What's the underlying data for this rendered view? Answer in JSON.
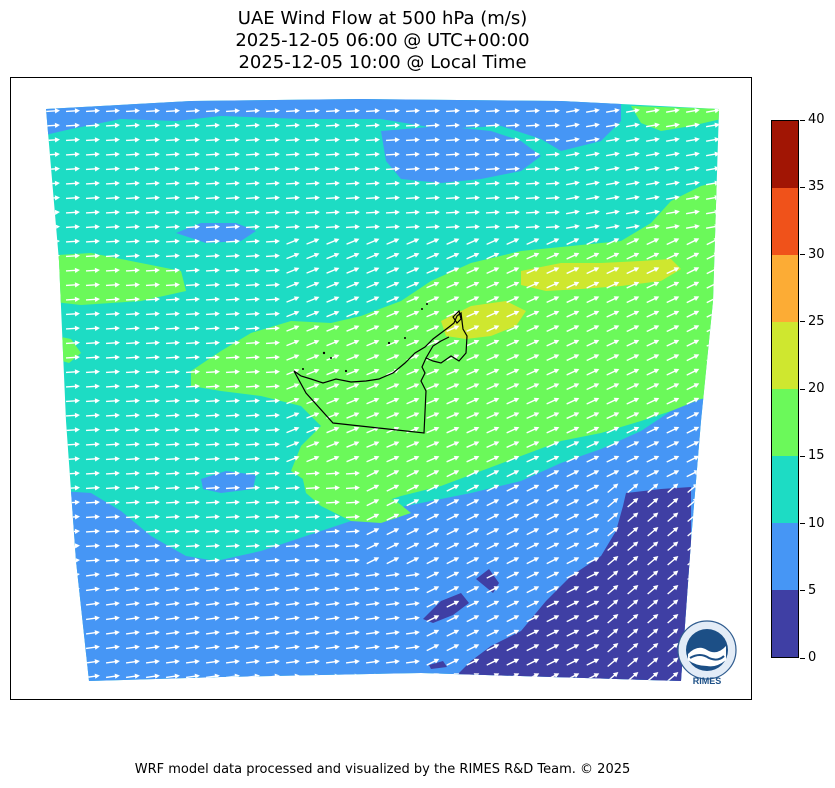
{
  "title": {
    "line1": "UAE Wind Flow at 500 hPa (m/s)",
    "line2": "2025-12-05 06:00 @ UTC+00:00",
    "line3": "2025-12-05 10:00 @ Local Time"
  },
  "colorbar": {
    "levels": [
      0,
      5,
      10,
      15,
      20,
      25,
      30,
      35,
      40
    ],
    "colors": [
      "#3f3fa4",
      "#4696f5",
      "#1ddcc4",
      "#6bf95a",
      "#cfe72f",
      "#fcac35",
      "#f0521a",
      "#a11504"
    ],
    "labels": [
      "0",
      "5",
      "10",
      "15",
      "20",
      "25",
      "30",
      "35",
      "40"
    ]
  },
  "map": {
    "wind_direction": "west-southwest to east-northeast",
    "arrow_color": "#ffffff",
    "outline_color": "#000000"
  },
  "logo": {
    "text": "RIMES",
    "ring_text": "Regional Integrated Multi-Hazard Early Warning System"
  },
  "footer": "WRF model data processed and visualized by the RIMES R&D Team. © 2025"
}
